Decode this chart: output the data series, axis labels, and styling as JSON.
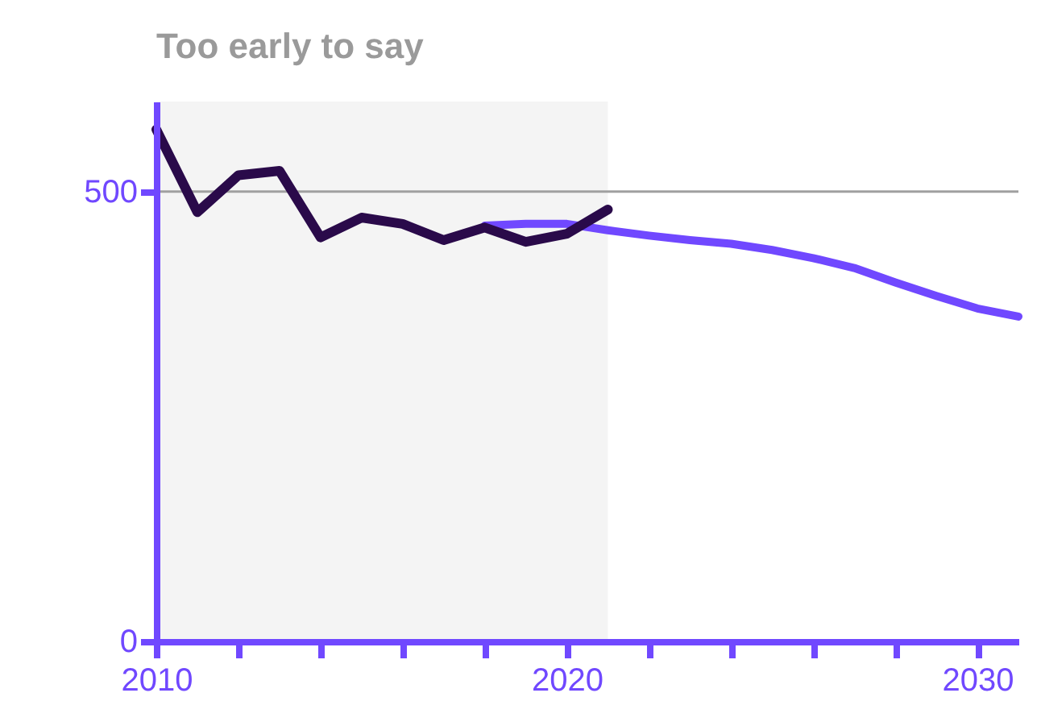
{
  "chart_data": {
    "type": "line",
    "title": "Too early to say",
    "xlim": [
      2010,
      2031
    ],
    "ylim": [
      0,
      600
    ],
    "xticks": [
      2010,
      {
        "value": 2012,
        "label": null
      },
      {
        "value": 2014,
        "label": null
      },
      {
        "value": 2016,
        "label": null
      },
      {
        "value": 2018,
        "label": null
      },
      2020,
      {
        "value": 2022,
        "label": null
      },
      {
        "value": 2024,
        "label": null
      },
      {
        "value": 2026,
        "label": null
      },
      {
        "value": 2028,
        "label": null
      },
      2030
    ],
    "yticks": [
      0,
      500
    ],
    "bands": [
      {
        "axis": "x",
        "from": 2010,
        "to": 2021,
        "color": "#f4f4f4"
      }
    ],
    "ref_lines": [
      {
        "axis": "y",
        "value": 500,
        "color": "#a0a0a0"
      }
    ],
    "series": [
      {
        "color": "#7048ff",
        "x": [
          2018,
          2019,
          2020,
          2021,
          2022,
          2023,
          2024,
          2025,
          2026,
          2027,
          2028,
          2029,
          2030,
          2031
        ],
        "values": [
          462,
          464,
          464,
          457,
          451,
          446,
          442,
          435,
          426,
          415,
          399,
          384,
          370,
          361
        ]
      },
      {
        "color": "#2a0a4a",
        "x": [
          2010,
          2011,
          2012,
          2013,
          2014,
          2015,
          2016,
          2017,
          2018,
          2019,
          2020,
          2021
        ],
        "values": [
          569,
          477,
          518,
          523,
          449,
          471,
          464,
          446,
          460,
          444,
          453,
          480
        ]
      }
    ]
  }
}
